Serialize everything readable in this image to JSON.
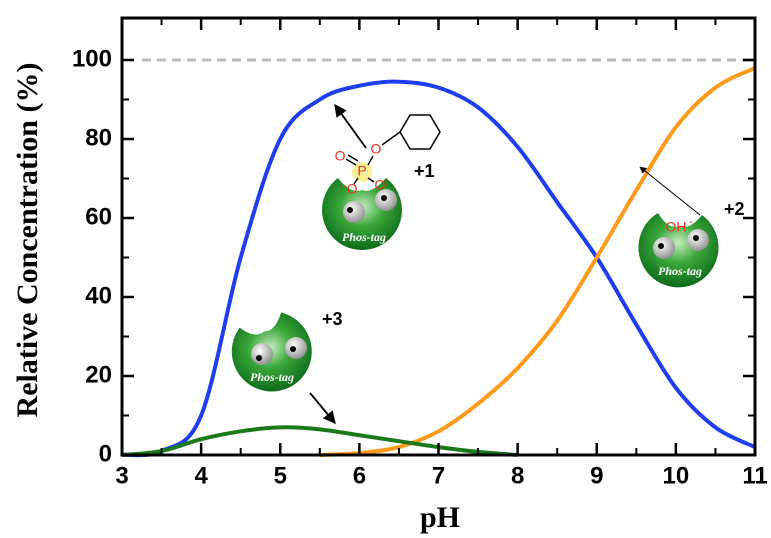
{
  "chart_data": {
    "type": "line",
    "x_label": "pH",
    "y_label": "Relative Concentration (%)",
    "x": [
      3,
      3.5,
      4,
      4.5,
      5,
      5.5,
      6,
      6.5,
      7,
      7.5,
      8,
      8.5,
      9,
      9.5,
      10,
      10.5,
      11
    ],
    "series": [
      {
        "name": "+1",
        "color": "#1f3ef0",
        "values": [
          0,
          1,
          10,
          50,
          80,
          90,
          93.5,
          94.5,
          93,
          88,
          78,
          64,
          50,
          33,
          17,
          7,
          2
        ]
      },
      {
        "name": "+2",
        "color": "#ff9a1a",
        "values": [
          null,
          null,
          null,
          null,
          null,
          0,
          0.5,
          2,
          6,
          13,
          22,
          34,
          50,
          67,
          83,
          93,
          98
        ]
      },
      {
        "name": "+3",
        "color": "#1a7a1a",
        "values": [
          0,
          1,
          4,
          6,
          7,
          6.5,
          5,
          3.5,
          2,
          0.8,
          0,
          null,
          null,
          null,
          null,
          null,
          null
        ]
      }
    ],
    "xlim": [
      3,
      11
    ],
    "ylim": [
      0,
      100
    ],
    "xticks": [
      3,
      4,
      5,
      6,
      7,
      8,
      9,
      10,
      11
    ],
    "yticks": [
      0,
      20,
      40,
      60,
      80,
      100
    ],
    "reference_line": 100,
    "annotations": [
      "+1",
      "+2",
      "+3"
    ],
    "icon_label": "Phos-tag",
    "molecule_labels": [
      "P",
      "O",
      "-",
      "OH"
    ]
  }
}
